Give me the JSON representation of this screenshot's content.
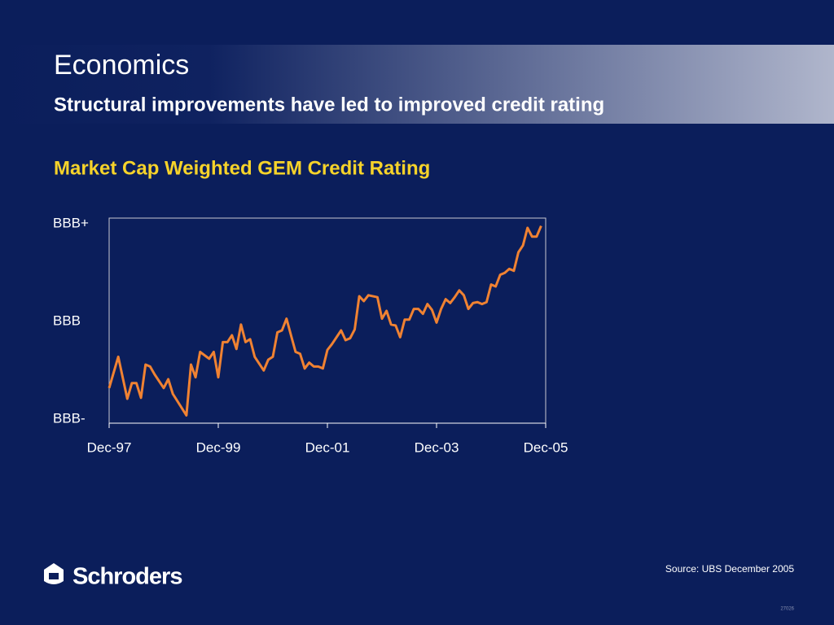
{
  "header": {
    "title": "Economics",
    "subtitle": "Structural improvements have led to improved credit rating"
  },
  "chart_data": {
    "type": "line",
    "title": "Market Cap Weighted GEM Credit Rating",
    "source": "Source: UBS December 2005",
    "x": [
      "1997-12",
      "1998-02",
      "1998-04",
      "1998-05",
      "1998-06",
      "1998-07",
      "1998-08",
      "1998-09",
      "1998-10",
      "1998-12",
      "1999-01",
      "1999-02",
      "1999-05",
      "1999-06",
      "1999-07",
      "1999-08",
      "1999-10",
      "1999-11",
      "1999-12",
      "2000-01",
      "2000-02",
      "2000-03",
      "2000-04",
      "2000-05",
      "2000-06",
      "2000-07",
      "2000-08",
      "2000-10",
      "2000-11",
      "2000-12",
      "2001-01",
      "2001-02",
      "2001-03",
      "2001-04",
      "2001-05",
      "2001-06",
      "2001-07",
      "2001-08",
      "2001-09",
      "2001-10",
      "2001-11",
      "2001-12",
      "2002-01",
      "2002-03",
      "2002-04",
      "2002-05",
      "2002-06",
      "2002-07",
      "2002-08",
      "2002-09",
      "2002-11",
      "2002-12",
      "2003-01",
      "2003-02",
      "2003-03",
      "2003-04",
      "2003-05",
      "2003-06",
      "2003-07",
      "2003-08",
      "2003-09",
      "2003-10",
      "2003-11",
      "2003-12",
      "2004-01",
      "2004-02",
      "2004-03",
      "2004-04",
      "2004-05",
      "2004-06",
      "2004-07",
      "2004-08",
      "2004-09",
      "2004-10",
      "2004-11",
      "2004-12",
      "2005-01",
      "2005-02",
      "2005-03",
      "2005-04",
      "2005-05",
      "2005-06",
      "2005-07",
      "2005-08",
      "2005-09",
      "2005-10",
      "2005-11"
    ],
    "series": [
      {
        "name": "GEM Credit Rating",
        "color": "#f08232",
        "values": [
          -0.68,
          -0.36,
          -0.79,
          -0.63,
          -0.63,
          -0.78,
          -0.44,
          -0.46,
          -0.54,
          -0.68,
          -0.59,
          -0.74,
          -0.96,
          -0.44,
          -0.57,
          -0.31,
          -0.38,
          -0.31,
          -0.57,
          -0.21,
          -0.21,
          -0.14,
          -0.28,
          -0.03,
          -0.21,
          -0.18,
          -0.36,
          -0.5,
          -0.39,
          -0.36,
          -0.11,
          -0.09,
          0.03,
          -0.14,
          -0.31,
          -0.33,
          -0.48,
          -0.42,
          -0.46,
          -0.46,
          -0.48,
          -0.29,
          -0.23,
          -0.09,
          -0.19,
          -0.17,
          -0.08,
          0.26,
          0.21,
          0.27,
          0.25,
          0.03,
          0.11,
          -0.03,
          -0.04,
          -0.16,
          0.02,
          0.02,
          0.13,
          0.13,
          0.08,
          0.18,
          0.12,
          -0.01,
          0.13,
          0.23,
          0.19,
          0.25,
          0.32,
          0.27,
          0.13,
          0.19,
          0.2,
          0.18,
          0.2,
          0.38,
          0.36,
          0.48,
          0.5,
          0.54,
          0.52,
          0.71,
          0.78,
          0.96,
          0.87,
          0.87,
          0.98
        ]
      }
    ],
    "xlim": [
      "1997-12",
      "2005-12"
    ],
    "xticks": [
      {
        "value": "1997-12",
        "label": "Dec-97"
      },
      {
        "value": "1999-12",
        "label": "Dec-99"
      },
      {
        "value": "2001-12",
        "label": "Dec-01"
      },
      {
        "value": "2003-12",
        "label": "Dec-03"
      },
      {
        "value": "2005-12",
        "label": "Dec-05"
      }
    ],
    "ylim": [
      -1.04,
      1.06
    ],
    "yticks": [
      {
        "value": -1,
        "label": "BBB-"
      },
      {
        "value": 0,
        "label": "BBB"
      },
      {
        "value": 1,
        "label": "BBB+"
      }
    ]
  },
  "footer": {
    "brand": "Schroders",
    "code": "27026"
  }
}
